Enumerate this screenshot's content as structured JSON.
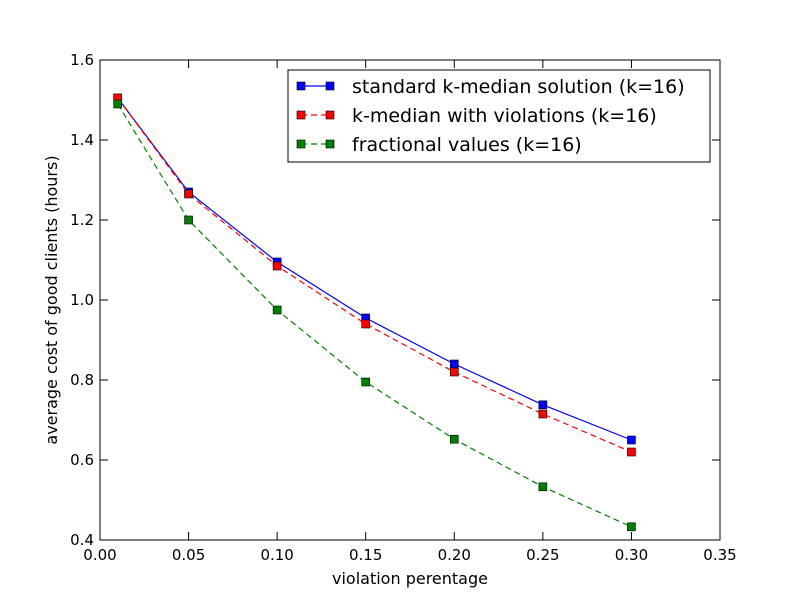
{
  "chart_data": {
    "type": "line",
    "title": "",
    "xlabel": "violation perentage",
    "ylabel": "average cost of good clients (hours)",
    "xlim": [
      0.0,
      0.35
    ],
    "ylim": [
      0.4,
      1.6
    ],
    "x_ticks": [
      "0.00",
      "0.05",
      "0.10",
      "0.15",
      "0.20",
      "0.25",
      "0.30",
      "0.35"
    ],
    "y_ticks": [
      "0.4",
      "0.6",
      "0.8",
      "1.0",
      "1.2",
      "1.4",
      "1.6"
    ],
    "x_tick_values": [
      0.0,
      0.05,
      0.1,
      0.15,
      0.2,
      0.25,
      0.3,
      0.35
    ],
    "y_tick_values": [
      0.4,
      0.6,
      0.8,
      1.0,
      1.2,
      1.4,
      1.6
    ],
    "grid": false,
    "legend_position": "top-right",
    "x": [
      0.01,
      0.05,
      0.1,
      0.15,
      0.2,
      0.25,
      0.3
    ],
    "series": [
      {
        "name": "standard k-median solution (k=16)",
        "color": "#0000ff",
        "line_style": "solid",
        "marker": "square",
        "values": [
          1.505,
          1.27,
          1.095,
          0.955,
          0.84,
          0.738,
          0.65
        ]
      },
      {
        "name": "k-median with violations (k=16)",
        "color": "#ff0000",
        "line_style": "dashed",
        "marker": "square",
        "values": [
          1.505,
          1.265,
          1.085,
          0.94,
          0.82,
          0.715,
          0.62
        ]
      },
      {
        "name": "fractional values (k=16)",
        "color": "#008000",
        "line_style": "dashed",
        "marker": "square",
        "values": [
          1.49,
          1.2,
          0.975,
          0.795,
          0.652,
          0.533,
          0.433
        ]
      }
    ]
  }
}
